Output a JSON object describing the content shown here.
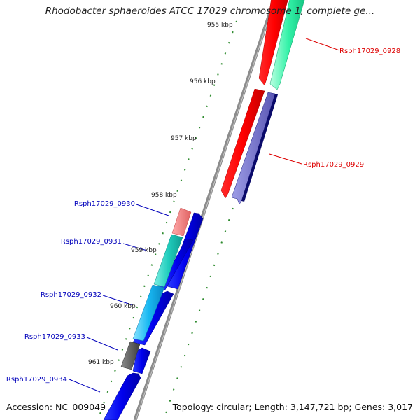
{
  "title": "Rhodobacter sphaeroides ATCC 17029 chromosome 1, complete ge...",
  "footer": {
    "accession": "Accession: NC_009049",
    "summary": "Topology: circular; Length: 3,147,721 bp; Genes: 3,017"
  },
  "ruler": {
    "ticks": [
      {
        "label": "955 kbp"
      },
      {
        "label": "956 kbp"
      },
      {
        "label": "957 kbp"
      },
      {
        "label": "958 kbp"
      },
      {
        "label": "959 kbp"
      },
      {
        "label": "960 kbp"
      },
      {
        "label": "961 kbp"
      }
    ]
  },
  "genes": [
    {
      "name": "Rsph17029_0928",
      "color": "#dd0000",
      "strand": "forward"
    },
    {
      "name": "Rsph17029_0929",
      "color": "#dd0000",
      "strand": "forward"
    },
    {
      "name": "Rsph17029_0930",
      "color": "#0000bb",
      "strand": "reverse"
    },
    {
      "name": "Rsph17029_0931",
      "color": "#0000bb",
      "strand": "reverse"
    },
    {
      "name": "Rsph17029_0932",
      "color": "#0000bb",
      "strand": "reverse"
    },
    {
      "name": "Rsph17029_0933",
      "color": "#0000bb",
      "strand": "reverse"
    },
    {
      "name": "Rsph17029_0934",
      "color": "#0000bb",
      "strand": "reverse"
    }
  ]
}
